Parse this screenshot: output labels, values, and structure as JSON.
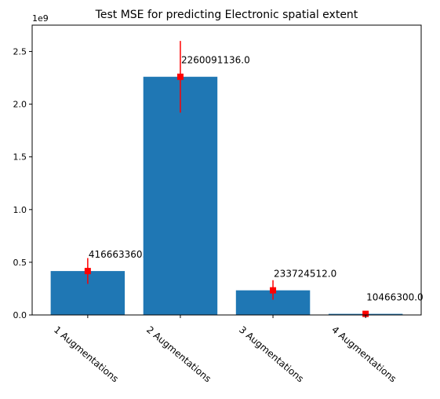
{
  "chart_data": {
    "type": "bar",
    "title": "Test MSE for predicting Electronic spatial extent",
    "xlabel": "",
    "ylabel": "",
    "offset_label": "1e9",
    "y_scale": 1000000000,
    "ylim": [
      0,
      2.75
    ],
    "y_ticks": [
      0.0,
      0.5,
      1.0,
      1.5,
      2.0,
      2.5
    ],
    "y_tick_labels": [
      "0.0",
      "0.5",
      "1.0",
      "1.5",
      "2.0",
      "2.5"
    ],
    "categories": [
      "1 Augmentations",
      "2 Augmentations",
      "3 Augmentations",
      "4 Augmentations"
    ],
    "values": [
      416663360.0,
      2260091136.0,
      233724512.0,
      10466300.0
    ],
    "value_labels": [
      "416663360.0",
      "2260091136.0",
      "233724512.0",
      "10466300.0"
    ],
    "error_low": [
      295000000,
      1920000000,
      145000000,
      3000000
    ],
    "error_high": [
      540000000,
      2600000000,
      330000000,
      18000000
    ],
    "grid": false,
    "bar_color": "#1f77b4",
    "marker_color": "#ff0000"
  }
}
